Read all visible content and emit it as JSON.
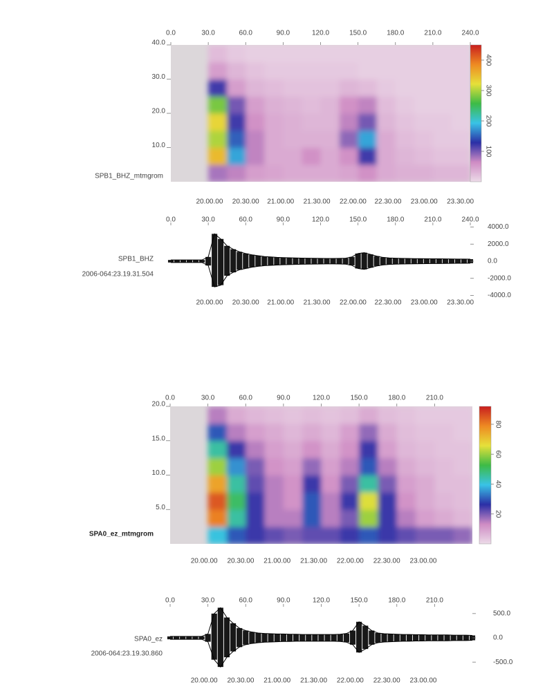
{
  "chart_data": [
    {
      "type": "heatmap",
      "label": "SPB1_BHZ_mtmgrom",
      "xlim": [
        0,
        240
      ],
      "ylim": [
        0,
        40
      ],
      "xticks": [
        {
          "value": 0,
          "label": "0.0"
        },
        {
          "value": 30,
          "label": "30.0"
        },
        {
          "value": 60,
          "label": "60.0"
        },
        {
          "value": 90,
          "label": "90.0"
        },
        {
          "value": 120,
          "label": "120.0"
        },
        {
          "value": 150,
          "label": "150.0"
        },
        {
          "value": 180,
          "label": "180.0"
        },
        {
          "value": 210,
          "label": "210.0"
        },
        {
          "value": 240,
          "label": "240.0"
        }
      ],
      "yticks": [
        {
          "value": 10,
          "label": "10.0"
        },
        {
          "value": 20,
          "label": "20.0"
        },
        {
          "value": 30,
          "label": "30.0"
        },
        {
          "value": 40,
          "label": "40.0"
        }
      ],
      "x2ticks": [
        {
          "value": 31,
          "label": "20.00.00"
        },
        {
          "value": 60,
          "label": "20.30.00"
        },
        {
          "value": 88,
          "label": "21.00.00"
        },
        {
          "value": 117,
          "label": "21.30.00"
        },
        {
          "value": 146,
          "label": "22.00.00"
        },
        {
          "value": 174,
          "label": "22.30.00"
        },
        {
          "value": 203,
          "label": "23.00.00"
        },
        {
          "value": 232,
          "label": "23.30.00"
        }
      ],
      "xbins": [
        0,
        15,
        30,
        45,
        60,
        75,
        90,
        105,
        120,
        135,
        150,
        165,
        180,
        195,
        210,
        225,
        240
      ],
      "ybins": [
        0,
        5,
        10,
        15,
        20,
        25,
        30,
        35,
        40
      ],
      "matrix": [
        [
          null,
          null,
          80,
          70,
          50,
          45,
          40,
          40,
          40,
          45,
          60,
          40,
          35,
          35,
          30,
          30
        ],
        [
          null,
          null,
          350,
          180,
          70,
          40,
          40,
          60,
          40,
          60,
          120,
          40,
          30,
          25,
          20,
          20
        ],
        [
          null,
          null,
          300,
          150,
          70,
          40,
          35,
          35,
          35,
          90,
          180,
          40,
          25,
          20,
          15,
          15
        ],
        [
          null,
          null,
          330,
          120,
          60,
          40,
          35,
          30,
          30,
          70,
          100,
          30,
          20,
          15,
          15,
          10
        ],
        [
          null,
          null,
          280,
          100,
          50,
          35,
          30,
          25,
          30,
          60,
          70,
          25,
          15,
          10,
          10,
          10
        ],
        [
          null,
          null,
          120,
          50,
          30,
          25,
          20,
          20,
          20,
          30,
          25,
          15,
          10,
          10,
          10,
          10
        ],
        [
          null,
          null,
          50,
          30,
          20,
          15,
          15,
          15,
          15,
          15,
          10,
          10,
          10,
          10,
          10,
          10
        ],
        [
          null,
          null,
          25,
          15,
          10,
          10,
          10,
          10,
          10,
          10,
          10,
          10,
          10,
          10,
          10,
          10
        ]
      ],
      "clim": [
        0,
        450
      ],
      "cticks": [
        100,
        200,
        300,
        400
      ],
      "colormap": [
        "#ecdbe8",
        "#cf8cc4",
        "#2b2fa6",
        "#39c3e6",
        "#3dbb46",
        "#e6e03a",
        "#ee8a22",
        "#c81e1e"
      ],
      "null_color": "#dcd7da"
    },
    {
      "type": "waveform",
      "station": "SPB1_BHZ",
      "timestamp": "2006-064:23.19.31.504",
      "color": "#000000",
      "xlim": [
        0,
        240
      ],
      "ylim": [
        -4200,
        4200
      ],
      "xticks": [
        {
          "value": 0,
          "label": "0.0"
        },
        {
          "value": 30,
          "label": "30.0"
        },
        {
          "value": 60,
          "label": "60.0"
        },
        {
          "value": 90,
          "label": "90.0"
        },
        {
          "value": 120,
          "label": "120.0"
        },
        {
          "value": 150,
          "label": "150.0"
        },
        {
          "value": 180,
          "label": "180.0"
        },
        {
          "value": 210,
          "label": "210.0"
        },
        {
          "value": 240,
          "label": "240.0"
        }
      ],
      "yticks": [
        {
          "value": 4000,
          "label": "4000.0"
        },
        {
          "value": 2000,
          "label": "2000.0"
        },
        {
          "value": 0,
          "label": "0.0"
        },
        {
          "value": -2000,
          "label": "-2000.0"
        },
        {
          "value": -4000,
          "label": "-4000.0"
        }
      ],
      "x2ticks": [
        {
          "value": 31,
          "label": "20.00.00"
        },
        {
          "value": 60,
          "label": "20.30.00"
        },
        {
          "value": 88,
          "label": "21.00.00"
        },
        {
          "value": 117,
          "label": "21.30.00"
        },
        {
          "value": 146,
          "label": "22.00.00"
        },
        {
          "value": 174,
          "label": "22.30.00"
        },
        {
          "value": 203,
          "label": "23.00.00"
        },
        {
          "value": 232,
          "label": "23.30.00"
        }
      ],
      "x": [
        0,
        5,
        10,
        15,
        20,
        25,
        30,
        35,
        40,
        45,
        50,
        55,
        60,
        65,
        70,
        75,
        80,
        85,
        90,
        95,
        100,
        105,
        110,
        115,
        120,
        125,
        130,
        135,
        140,
        145,
        150,
        155,
        160,
        165,
        170,
        175,
        180,
        185,
        190,
        195,
        200,
        205,
        210,
        215,
        220,
        225,
        230,
        235,
        240
      ],
      "upper": [
        150,
        150,
        150,
        150,
        150,
        150,
        500,
        3200,
        2600,
        1800,
        1400,
        1100,
        900,
        750,
        650,
        550,
        500,
        450,
        420,
        400,
        380,
        360,
        350,
        340,
        330,
        320,
        320,
        330,
        350,
        500,
        900,
        1000,
        800,
        600,
        450,
        380,
        350,
        330,
        320,
        300,
        300,
        290,
        280,
        280,
        270,
        260,
        250,
        250,
        240
      ],
      "lower": [
        -150,
        -150,
        -150,
        -150,
        -150,
        -150,
        -500,
        -3000,
        -2800,
        -1700,
        -1300,
        -1000,
        -850,
        -700,
        -600,
        -520,
        -480,
        -440,
        -410,
        -390,
        -370,
        -350,
        -340,
        -330,
        -320,
        -310,
        -310,
        -320,
        -340,
        -480,
        -850,
        -950,
        -750,
        -560,
        -430,
        -370,
        -340,
        -320,
        -310,
        -300,
        -290,
        -280,
        -270,
        -270,
        -260,
        -250,
        -240,
        -240,
        -230
      ]
    },
    {
      "type": "heatmap",
      "label": "SPA0_ez_mtmgrom",
      "xlim": [
        0,
        240
      ],
      "ylim": [
        0,
        20
      ],
      "xticks": [
        {
          "value": 0,
          "label": "0.0"
        },
        {
          "value": 30,
          "label": "30.0"
        },
        {
          "value": 60,
          "label": "60.0"
        },
        {
          "value": 90,
          "label": "90.0"
        },
        {
          "value": 120,
          "label": "120.0"
        },
        {
          "value": 150,
          "label": "150.0"
        },
        {
          "value": 180,
          "label": "180.0"
        },
        {
          "value": 210,
          "label": "210.0"
        }
      ],
      "yticks": [
        {
          "value": 5,
          "label": "5.0"
        },
        {
          "value": 10,
          "label": "10.0"
        },
        {
          "value": 15,
          "label": "15.0"
        },
        {
          "value": 20,
          "label": "20.0"
        }
      ],
      "x2ticks": [
        {
          "value": 27,
          "label": "20.00.00"
        },
        {
          "value": 56,
          "label": "20.30.00"
        },
        {
          "value": 85,
          "label": "21.00.00"
        },
        {
          "value": 114,
          "label": "21.30.00"
        },
        {
          "value": 143,
          "label": "22.00.00"
        },
        {
          "value": 172,
          "label": "22.30.00"
        },
        {
          "value": 201,
          "label": "23.00.00"
        }
      ],
      "xbins": [
        0,
        15,
        30,
        45,
        60,
        75,
        90,
        105,
        120,
        135,
        150,
        165,
        180,
        195,
        210,
        225,
        240
      ],
      "ybins": [
        0,
        2.5,
        5,
        7.5,
        10,
        12.5,
        15,
        17.5,
        20
      ],
      "matrix": [
        [
          null,
          null,
          40,
          30,
          25,
          22,
          20,
          22,
          22,
          25,
          30,
          25,
          22,
          20,
          20,
          18
        ],
        [
          null,
          null,
          80,
          45,
          25,
          15,
          15,
          30,
          15,
          20,
          60,
          25,
          15,
          10,
          8,
          6
        ],
        [
          null,
          null,
          85,
          50,
          25,
          15,
          12,
          30,
          15,
          25,
          65,
          25,
          12,
          8,
          6,
          5
        ],
        [
          null,
          null,
          75,
          45,
          22,
          15,
          12,
          25,
          12,
          20,
          45,
          20,
          10,
          8,
          5,
          5
        ],
        [
          null,
          null,
          60,
          35,
          20,
          12,
          10,
          18,
          10,
          15,
          30,
          15,
          8,
          6,
          5,
          4
        ],
        [
          null,
          null,
          45,
          25,
          15,
          10,
          8,
          12,
          8,
          12,
          25,
          10,
          6,
          5,
          4,
          4
        ],
        [
          null,
          null,
          30,
          15,
          10,
          8,
          6,
          8,
          6,
          10,
          18,
          8,
          5,
          4,
          4,
          3
        ],
        [
          null,
          null,
          15,
          8,
          6,
          5,
          4,
          5,
          4,
          5,
          8,
          5,
          4,
          3,
          3,
          3
        ]
      ],
      "clim": [
        0,
        92
      ],
      "cticks": [
        20,
        40,
        60,
        80
      ],
      "colormap": [
        "#ecdbe8",
        "#cf8cc4",
        "#2b2fa6",
        "#39c3e6",
        "#3dbb46",
        "#e6e03a",
        "#ee8a22",
        "#c81e1e"
      ],
      "null_color": "#dcd7da"
    },
    {
      "type": "waveform",
      "station": "SPA0_ez",
      "timestamp": "2006-064:23.19.30.860",
      "color": "#000000",
      "xlim": [
        0,
        240
      ],
      "ylim": [
        -740,
        640
      ],
      "xticks": [
        {
          "value": 0,
          "label": "0.0"
        },
        {
          "value": 30,
          "label": "30.0"
        },
        {
          "value": 60,
          "label": "60.0"
        },
        {
          "value": 90,
          "label": "90.0"
        },
        {
          "value": 120,
          "label": "120.0"
        },
        {
          "value": 150,
          "label": "150.0"
        },
        {
          "value": 180,
          "label": "180.0"
        },
        {
          "value": 210,
          "label": "210.0"
        }
      ],
      "yticks": [
        {
          "value": 500,
          "label": "500.0"
        },
        {
          "value": 0,
          "label": "0.0"
        },
        {
          "value": -500,
          "label": "-500.0"
        }
      ],
      "x2ticks": [
        {
          "value": 27,
          "label": "20.00.00"
        },
        {
          "value": 56,
          "label": "20.30.00"
        },
        {
          "value": 85,
          "label": "21.00.00"
        },
        {
          "value": 114,
          "label": "21.30.00"
        },
        {
          "value": 143,
          "label": "22.00.00"
        },
        {
          "value": 172,
          "label": "22.30.00"
        },
        {
          "value": 201,
          "label": "23.00.00"
        }
      ],
      "x": [
        0,
        5,
        10,
        15,
        20,
        25,
        30,
        35,
        40,
        45,
        50,
        55,
        60,
        65,
        70,
        75,
        80,
        85,
        90,
        95,
        100,
        105,
        110,
        115,
        120,
        125,
        130,
        135,
        140,
        145,
        150,
        155,
        160,
        165,
        170,
        175,
        180,
        185,
        190,
        195,
        200,
        205,
        210,
        215,
        220,
        225,
        230,
        235,
        240
      ],
      "upper": [
        30,
        30,
        30,
        30,
        30,
        30,
        80,
        500,
        620,
        420,
        300,
        200,
        150,
        120,
        100,
        90,
        85,
        80,
        80,
        75,
        75,
        70,
        70,
        70,
        70,
        70,
        70,
        75,
        90,
        150,
        330,
        250,
        150,
        100,
        85,
        80,
        75,
        70,
        70,
        65,
        65,
        60,
        60,
        60,
        60,
        55,
        55,
        55,
        50
      ],
      "lower": [
        -30,
        -30,
        -30,
        -30,
        -30,
        -30,
        -80,
        -450,
        -600,
        -400,
        -280,
        -190,
        -140,
        -115,
        -100,
        -90,
        -85,
        -80,
        -75,
        -75,
        -70,
        -70,
        -70,
        -70,
        -70,
        -70,
        -70,
        -75,
        -90,
        -140,
        -300,
        -230,
        -140,
        -100,
        -85,
        -80,
        -75,
        -70,
        -70,
        -65,
        -65,
        -60,
        -60,
        -60,
        -60,
        -55,
        -55,
        -55,
        -50
      ]
    }
  ]
}
